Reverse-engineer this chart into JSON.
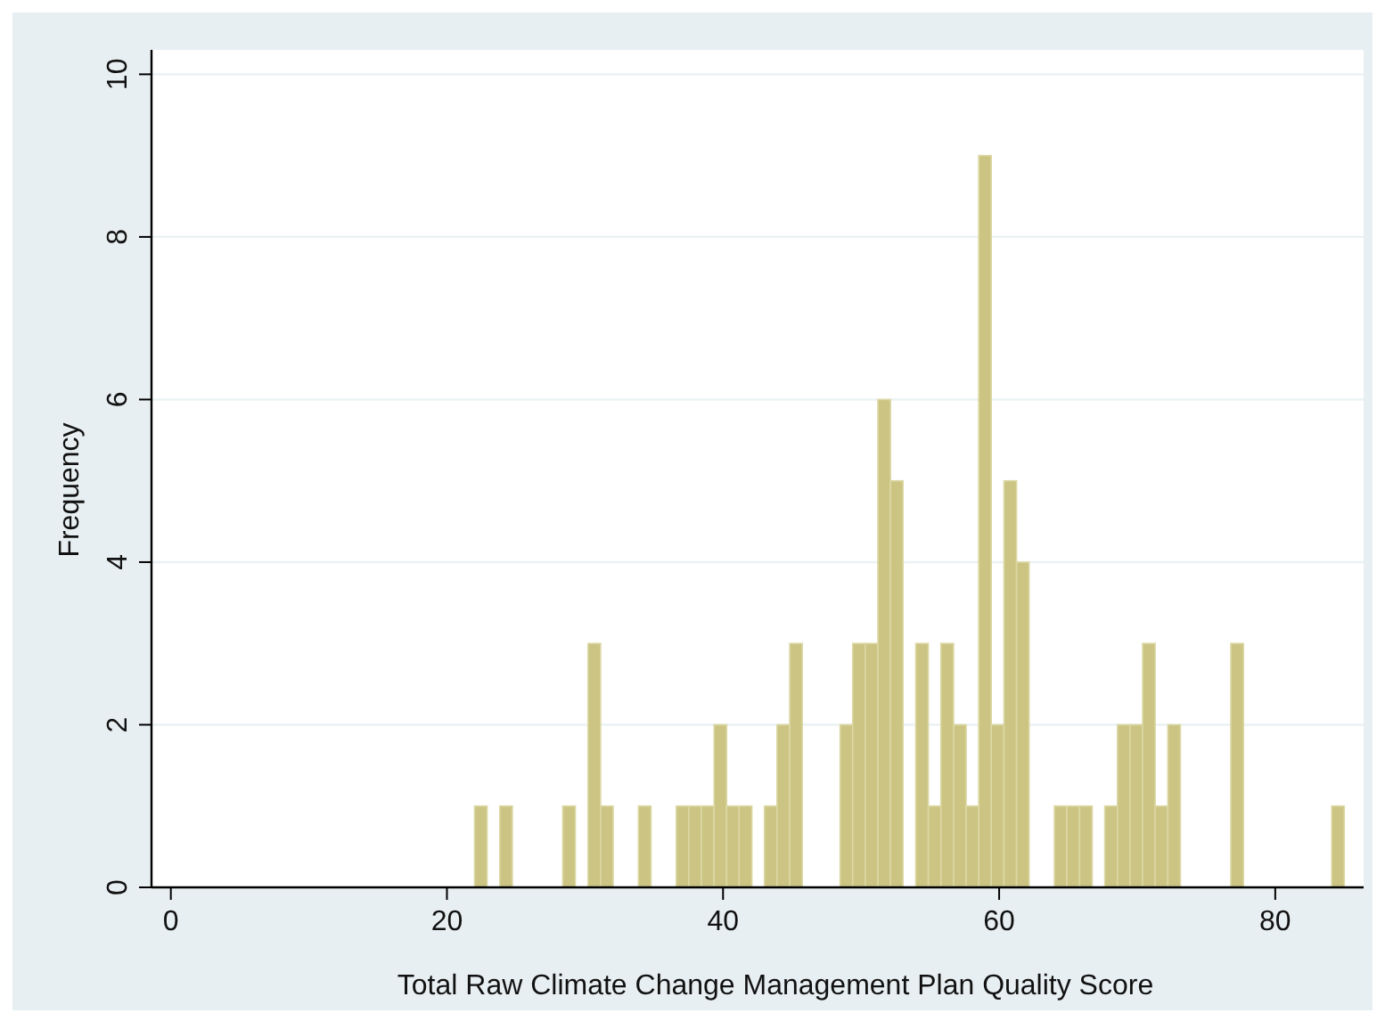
{
  "chart_data": {
    "type": "histogram",
    "xlabel": "Total Raw Climate Change Management Plan Quality Score",
    "ylabel": "Frequency",
    "bins": [
      22,
      22.91,
      23.83,
      24.74,
      25.65,
      26.57,
      27.48,
      28.39,
      29.3,
      30.22,
      31.13,
      32.04,
      32.96,
      33.87,
      34.78,
      35.7,
      36.61,
      37.52,
      38.43,
      39.35,
      40.26,
      41.17,
      42.09,
      43,
      43.91,
      44.83,
      45.74,
      46.65,
      47.57,
      48.48,
      49.39,
      50.3,
      51.22,
      52.13,
      53.04,
      53.96,
      54.87,
      55.78,
      56.7,
      57.61,
      58.52,
      59.43,
      60.35,
      61.26,
      62.17,
      63.09,
      64,
      64.91,
      65.83,
      66.74,
      67.65,
      68.57,
      69.48,
      70.39,
      71.3,
      72.22,
      73.13,
      74.04,
      74.96,
      75.87,
      76.78,
      77.7,
      78.61,
      79.52,
      80.43,
      81.35,
      82.26,
      83.17,
      84.09,
      85
    ],
    "values": [
      1,
      0,
      1,
      0,
      0,
      0,
      0,
      1,
      0,
      3,
      1,
      0,
      0,
      1,
      0,
      0,
      1,
      1,
      1,
      2,
      1,
      1,
      0,
      1,
      2,
      3,
      0,
      0,
      0,
      2,
      3,
      3,
      6,
      5,
      0,
      3,
      1,
      3,
      2,
      1,
      9,
      2,
      5,
      4,
      0,
      0,
      1,
      1,
      1,
      0,
      1,
      2,
      2,
      3,
      1,
      2,
      0,
      0,
      0,
      0,
      3,
      0,
      0,
      0,
      0,
      0,
      0,
      0,
      1
    ],
    "color": "#cbc483",
    "xlim": [
      -1.4,
      86.4
    ],
    "ylim": [
      0,
      10.3
    ],
    "xticks": [
      0,
      20,
      40,
      60,
      80
    ],
    "yticks": [
      0,
      2,
      4,
      6,
      8,
      10
    ],
    "grid": "y"
  }
}
